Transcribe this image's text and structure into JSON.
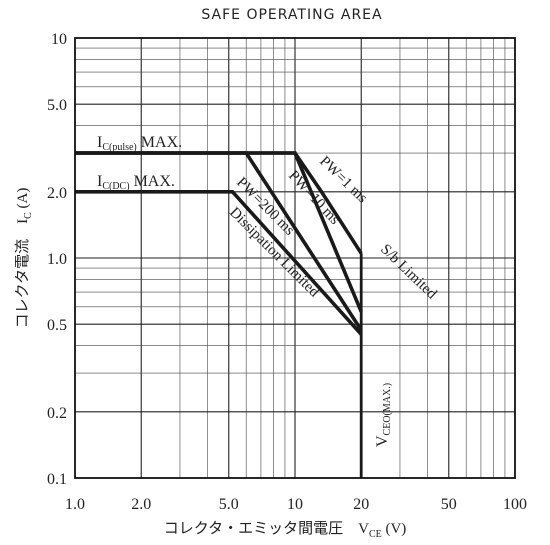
{
  "chart_data": {
    "type": "line",
    "title": "SAFE OPERATING AREA",
    "xlabel": "コレクタ・エミッタ間電圧　V",
    "xlabel_sub": "CE",
    "xlabel_unit": " (V)",
    "ylabel": "コレクタ電流　I",
    "ylabel_sub": "C",
    "ylabel_unit": " (A)",
    "x_scale": "log",
    "y_scale": "log",
    "xlim": [
      1,
      100
    ],
    "ylim": [
      0.1,
      10
    ],
    "grid": true,
    "x_ticks": [
      {
        "value": 1,
        "label": "1.0"
      },
      {
        "value": 2,
        "label": "2.0"
      },
      {
        "value": 5,
        "label": "5.0"
      },
      {
        "value": 10,
        "label": "10"
      },
      {
        "value": 20,
        "label": "20"
      },
      {
        "value": 50,
        "label": "50"
      },
      {
        "value": 100,
        "label": "100"
      }
    ],
    "y_ticks": [
      {
        "value": 0.1,
        "label": "0.1"
      },
      {
        "value": 0.2,
        "label": "0.2"
      },
      {
        "value": 0.5,
        "label": "0.5"
      },
      {
        "value": 1,
        "label": "1.0"
      },
      {
        "value": 2,
        "label": "2.0"
      },
      {
        "value": 5,
        "label": "5.0"
      },
      {
        "value": 10,
        "label": "10"
      }
    ],
    "series": [
      {
        "id": "pw1ms",
        "x": [
          1,
          10,
          13.2,
          20
        ],
        "y": [
          3,
          3,
          2,
          1.05
        ]
      },
      {
        "id": "pw10ms",
        "x": [
          1,
          10,
          20
        ],
        "y": [
          3,
          3,
          0.57
        ]
      },
      {
        "id": "pw200ms",
        "x": [
          1,
          6,
          20
        ],
        "y": [
          3,
          3,
          0.47
        ]
      },
      {
        "id": "dc",
        "x": [
          1,
          5.2,
          20
        ],
        "y": [
          2,
          2,
          0.45
        ]
      },
      {
        "id": "vceo",
        "x": [
          20,
          20
        ],
        "y": [
          0.1,
          1.05
        ]
      }
    ],
    "annotations": {
      "ic_pulse": {
        "main": "I",
        "sub": "C(pulse)",
        "rest": " MAX."
      },
      "ic_dc": {
        "main": "I",
        "sub": "C(DC)",
        "rest": " MAX."
      },
      "pw1ms": "PW=1 ms",
      "pw10ms": "PW=10 ms",
      "pw200ms": "PW=200 ms",
      "dissipation": "Dissipation Limited",
      "sb_limited": "S/b Limited",
      "vceo": {
        "main": "V",
        "sub": "CEO(MAX.)"
      }
    }
  }
}
